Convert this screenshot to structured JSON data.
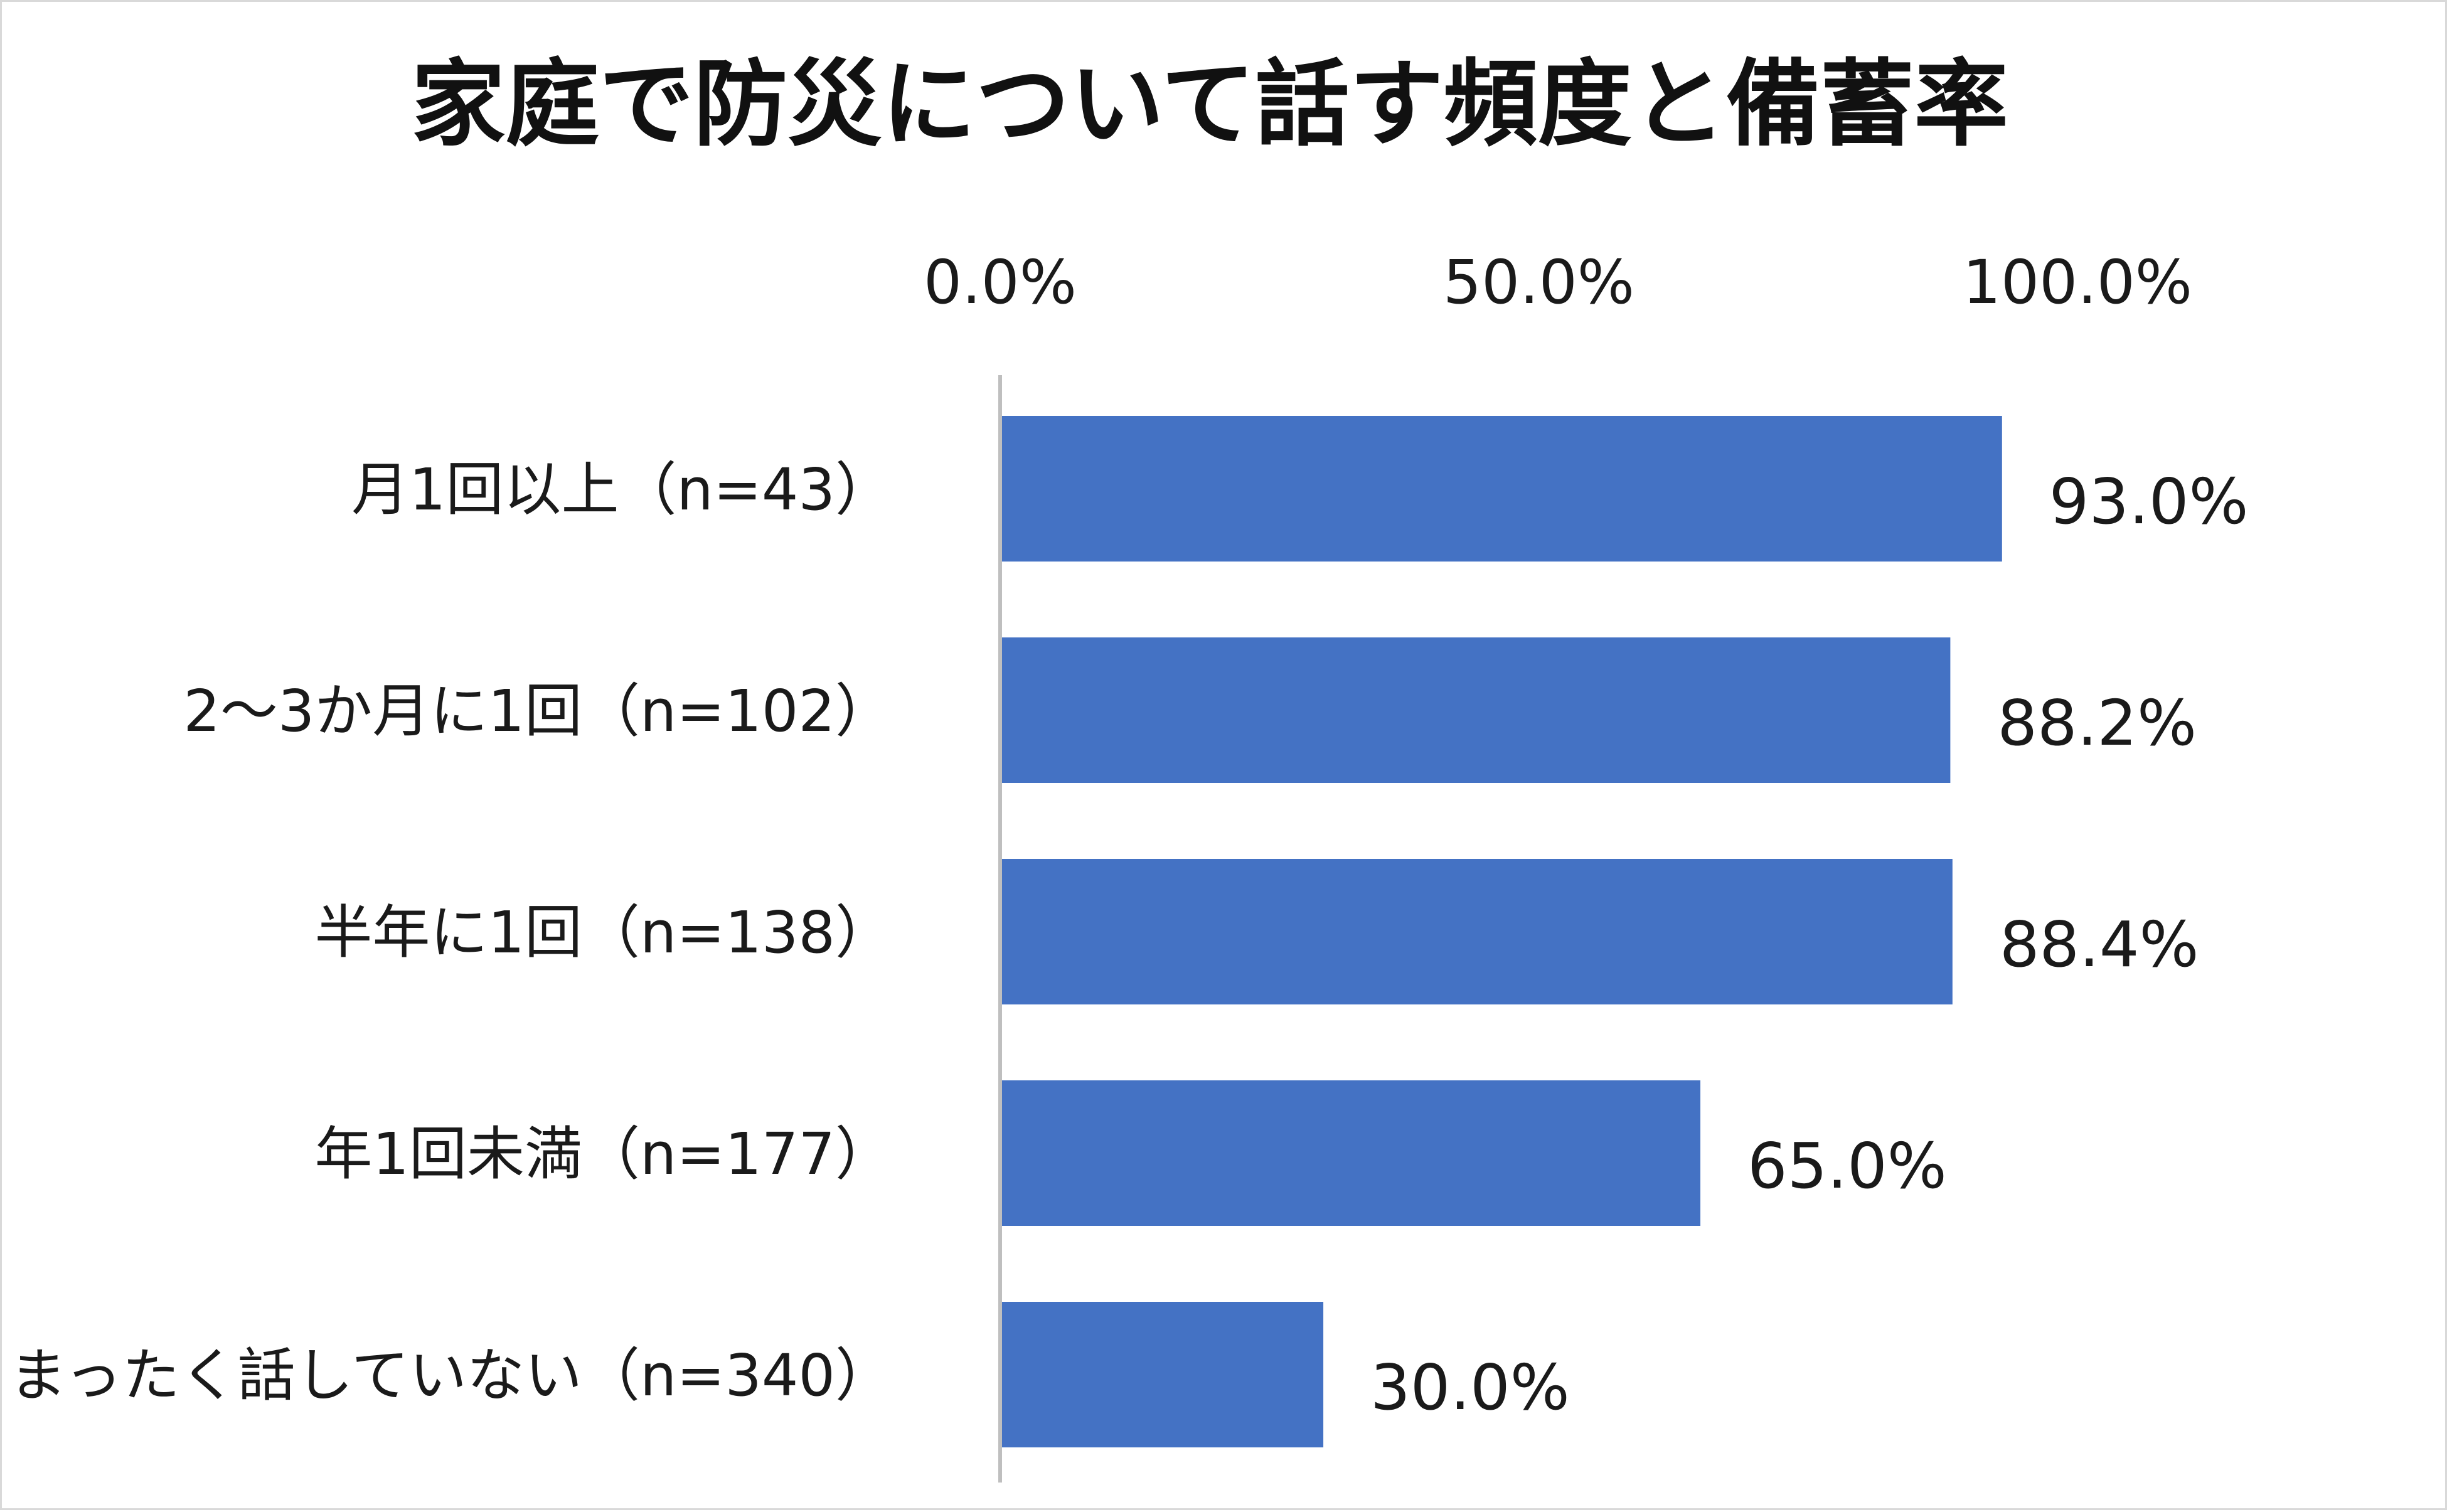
{
  "chart_data": {
    "type": "bar",
    "orientation": "horizontal",
    "title": "家庭で防災について話す頻度と備蓄率",
    "categories": [
      "月1回以上（n=43）",
      "2～3か月に1回（n=102）",
      "半年に1回（n=138）",
      "年1回未満（n=177）",
      "まったく話していない（n=340）"
    ],
    "values": [
      93.0,
      88.2,
      88.4,
      65.0,
      30.0
    ],
    "value_labels": [
      "93.0%",
      "88.2%",
      "88.4%",
      "65.0%",
      "30.0%"
    ],
    "xlim": [
      0,
      100
    ],
    "x_ticks": [
      0,
      50,
      100
    ],
    "x_tick_labels": [
      "0.0%",
      "50.0%",
      "100.0%"
    ],
    "x_axis_position": "top",
    "grid": false,
    "legend": "none",
    "bar_color": "#4472c4",
    "axis_color": "#bfbfbf"
  }
}
